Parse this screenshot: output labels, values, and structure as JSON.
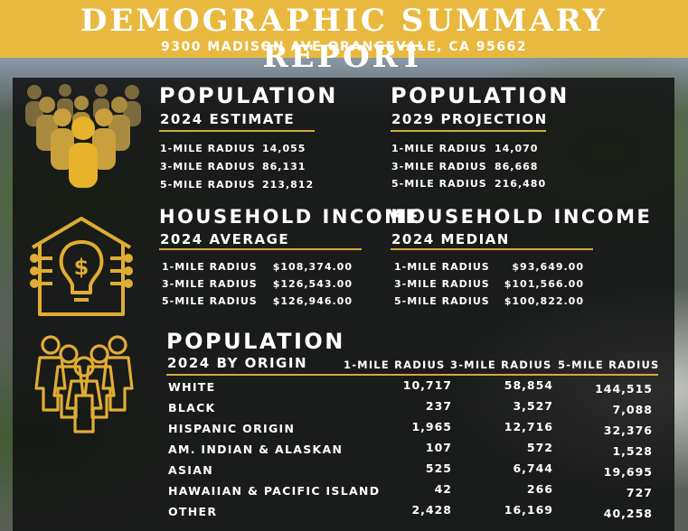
{
  "header": {
    "title": "DEMOGRAPHIC SUMMARY REPORT",
    "address": "9300 MADISON AVE ORANGEVALE, CA 95662"
  },
  "colors": {
    "banner": "#e8b93e",
    "accent": "#d6a93a",
    "text": "#ffffff"
  },
  "population_2024": {
    "title": "POPULATION",
    "subtitle": "2024 ESTIMATE",
    "icon": "crowd-icon",
    "rows": [
      {
        "label": "1-MILE RADIUS",
        "value": "14,055"
      },
      {
        "label": "3-MILE RADIUS",
        "value": "86,131"
      },
      {
        "label": "5-MILE RADIUS",
        "value": "213,812"
      }
    ]
  },
  "population_2029": {
    "title": "POPULATION",
    "subtitle": "2029 PROJECTION",
    "rows": [
      {
        "label": "1-MILE RADIUS",
        "value": "14,070"
      },
      {
        "label": "3-MILE RADIUS",
        "value": "86,668"
      },
      {
        "label": "5-MILE RADIUS",
        "value": "216,480"
      }
    ]
  },
  "income_average": {
    "title": "HOUSEHOLD INCOME",
    "subtitle": "2024 AVERAGE",
    "icon": "house-dollar-bulb-icon",
    "rows": [
      {
        "label": "1-MILE RADIUS",
        "value": "$108,374.00"
      },
      {
        "label": "3-MILE RADIUS",
        "value": "$126,543.00"
      },
      {
        "label": "5-MILE RADIUS",
        "value": "$126,946.00"
      }
    ]
  },
  "income_median": {
    "title": "HOUSEHOLD INCOME",
    "subtitle": "2024 MEDIAN",
    "rows": [
      {
        "label": "1-MILE RADIUS",
        "value": "$93,649.00"
      },
      {
        "label": "3-MILE RADIUS",
        "value": "$101,566.00"
      },
      {
        "label": "5-MILE RADIUS",
        "value": "$100,822.00"
      }
    ]
  },
  "origin": {
    "title": "POPULATION",
    "subtitle": "2024 BY ORIGIN",
    "icon": "group-outline-icon",
    "columns": [
      "1-MILE RADIUS",
      "3-MILE RADIUS",
      "5-MILE RADIUS"
    ],
    "rows": [
      {
        "label": "WHITE",
        "v1": "10,717",
        "v3": "58,854",
        "v5": "144,515"
      },
      {
        "label": "BLACK",
        "v1": "237",
        "v3": "3,527",
        "v5": "7,088"
      },
      {
        "label": "HISPANIC ORIGIN",
        "v1": "1,965",
        "v3": "12,716",
        "v5": "32,376"
      },
      {
        "label": "AM. INDIAN & ALASKAN",
        "v1": "107",
        "v3": "572",
        "v5": "1,528"
      },
      {
        "label": "ASIAN",
        "v1": "525",
        "v3": "6,744",
        "v5": "19,695"
      },
      {
        "label": "HAWAIIAN & PACIFIC ISLAND",
        "v1": "42",
        "v3": "266",
        "v5": "727"
      },
      {
        "label": "OTHER",
        "v1": "2,428",
        "v3": "16,169",
        "v5": "40,258"
      }
    ]
  }
}
